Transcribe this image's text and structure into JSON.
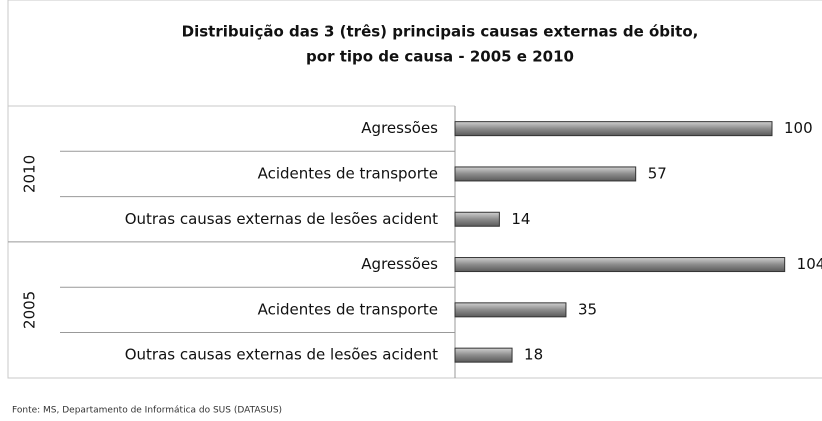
{
  "chart_data": {
    "type": "bar",
    "title": [
      "Distribuição das 3 (três) principais causas externas de óbito,",
      "por tipo de causa - 2005 e 2010"
    ],
    "groups": [
      {
        "name": "2010",
        "categories": [
          "Agressões",
          "Acidentes de transporte",
          "Outras causas externas de lesões acident"
        ],
        "values": [
          100,
          57,
          14
        ]
      },
      {
        "name": "2005",
        "categories": [
          "Agressões",
          "Acidentes de transporte",
          "Outras causas externas de lesões acident"
        ],
        "values": [
          104,
          35,
          18
        ]
      }
    ],
    "color": "#8c8c8c",
    "source": "Fonte: MS, Departamento de Informática do SUS (DATASUS)"
  }
}
